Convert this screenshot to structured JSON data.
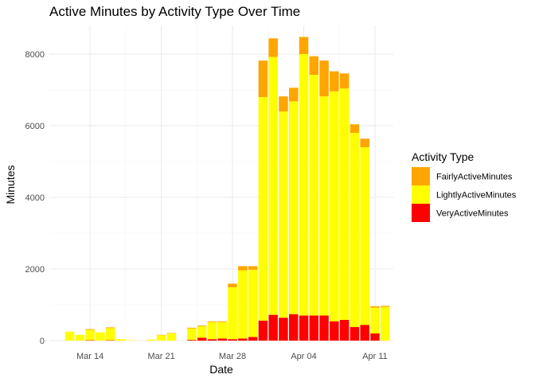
{
  "chart_data": {
    "type": "bar",
    "stacked": true,
    "title": "Active Minutes by Activity Type Over Time",
    "xlabel": "Date",
    "ylabel": "Minutes",
    "ylim": [
      0,
      8800
    ],
    "y_ticks": [
      0,
      2000,
      4000,
      6000,
      8000
    ],
    "y_tick_labels": [
      "0",
      "2000",
      "4000",
      "6000",
      "8000"
    ],
    "x_ticks": [
      {
        "label": "Mar 14",
        "day": 14
      },
      {
        "label": "Mar 21",
        "day": 21
      },
      {
        "label": "Mar 28",
        "day": 28
      },
      {
        "label": "Apr 04",
        "day": 35
      },
      {
        "label": "Apr 11",
        "day": 42
      }
    ],
    "x_range_days": [
      10,
      43.8
    ],
    "grid": true,
    "legend": {
      "title": "Activity Type",
      "position": "right",
      "entries": [
        "FairlyActiveMinutes",
        "LightlyActiveMinutes",
        "VeryActiveMinutes"
      ]
    },
    "colors": {
      "VeryActiveMinutes": "#ff0000",
      "LightlyActiveMinutes": "#ffff00",
      "FairlyActiveMinutes": "#ffa500"
    },
    "x_days": [
      12,
      13,
      14,
      15,
      16,
      17,
      18,
      19,
      20,
      21,
      22,
      23,
      24,
      25,
      26,
      27,
      28,
      29,
      30,
      31,
      32,
      33,
      34,
      35,
      36,
      37,
      38,
      39,
      40,
      41,
      42,
      43
    ],
    "series": [
      {
        "name": "VeryActiveMinutes",
        "values": [
          0,
          0,
          10,
          0,
          10,
          0,
          0,
          0,
          0,
          0,
          0,
          0,
          20,
          80,
          40,
          60,
          40,
          60,
          100,
          560,
          720,
          640,
          740,
          700,
          700,
          700,
          540,
          580,
          380,
          440,
          200,
          0
        ]
      },
      {
        "name": "LightlyActiveMinutes",
        "values": [
          250,
          160,
          290,
          230,
          340,
          40,
          10,
          0,
          30,
          150,
          200,
          0,
          320,
          320,
          480,
          460,
          1450,
          1900,
          1880,
          6240,
          7200,
          5760,
          5940,
          7300,
          6720,
          6120,
          6420,
          6460,
          5420,
          4960,
          720,
          940
        ]
      },
      {
        "name": "FairlyActiveMinutes",
        "values": [
          0,
          0,
          20,
          0,
          20,
          0,
          0,
          0,
          0,
          10,
          10,
          0,
          20,
          20,
          20,
          20,
          100,
          120,
          100,
          1020,
          520,
          420,
          380,
          480,
          520,
          1000,
          560,
          420,
          240,
          240,
          40,
          30
        ]
      }
    ]
  }
}
